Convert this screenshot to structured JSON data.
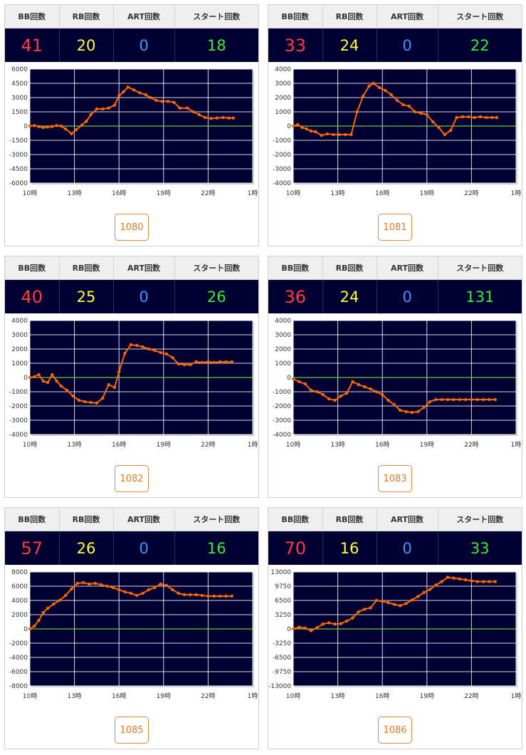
{
  "headers": {
    "bb": "BB回数",
    "rb": "RB回数",
    "art": "ART回数",
    "start": "スタート回数"
  },
  "machines": [
    {
      "number": "1080",
      "stats": {
        "bb": "41",
        "rb": "20",
        "art": "0",
        "start": "18"
      },
      "chart_data": {
        "type": "line",
        "x_ticks": [
          "10時",
          "13時",
          "16時",
          "19時",
          "22時",
          "1時"
        ],
        "y_ticks": [
          "6000",
          "4500",
          "3000",
          "1500",
          "0",
          "-1500",
          "-3000",
          "-4500",
          "-6000"
        ],
        "ylim": [
          -6000,
          6000
        ],
        "xlim": [
          10,
          25
        ],
        "series": [
          {
            "x": [
              10,
              10.3,
              10.6,
              10.9,
              11.2,
              11.5,
              11.8,
              12.1,
              12.4,
              12.8,
              13.1,
              13.5,
              13.8,
              14.1,
              14.5,
              14.9,
              15.3,
              15.7,
              16.0,
              16.3,
              16.6,
              17.0,
              17.4,
              17.8,
              18.1,
              18.5,
              18.9,
              19.3,
              19.7,
              20.1,
              20.6,
              21.0,
              21.4,
              21.8,
              22.2,
              22.6,
              23.0,
              23.4,
              23.7
            ],
            "y": [
              0,
              50,
              -50,
              -150,
              -100,
              -50,
              50,
              0,
              -300,
              -800,
              -400,
              100,
              500,
              1200,
              1800,
              1800,
              1900,
              2200,
              3200,
              3600,
              4100,
              3800,
              3500,
              3300,
              3000,
              2700,
              2600,
              2600,
              2500,
              1900,
              1900,
              1500,
              1200,
              900,
              800,
              850,
              900,
              850,
              850
            ]
          }
        ]
      }
    },
    {
      "number": "1081",
      "stats": {
        "bb": "33",
        "rb": "24",
        "art": "0",
        "start": "22"
      },
      "chart_data": {
        "type": "line",
        "x_ticks": [
          "10時",
          "13時",
          "16時",
          "19時",
          "22時",
          "1時"
        ],
        "y_ticks": [
          "4000",
          "3000",
          "2000",
          "1000",
          "0",
          "-1000",
          "-2000",
          "-3000",
          "-4000"
        ],
        "ylim": [
          -4000,
          4000
        ],
        "xlim": [
          10,
          25
        ],
        "series": [
          {
            "x": [
              10,
              10.3,
              10.6,
              10.9,
              11.2,
              11.5,
              11.9,
              12.3,
              12.7,
              13.1,
              13.5,
              13.9,
              14.3,
              14.7,
              15.1,
              15.4,
              15.8,
              16.2,
              16.6,
              17.0,
              17.4,
              17.8,
              18.2,
              18.6,
              19.0,
              19.4,
              19.8,
              20.2,
              20.6,
              21.0,
              21.4,
              21.8,
              22.2,
              22.6,
              23.0,
              23.4,
              23.7
            ],
            "y": [
              0,
              100,
              -100,
              -200,
              -350,
              -400,
              -650,
              -550,
              -600,
              -600,
              -600,
              -600,
              1000,
              2100,
              2800,
              3000,
              2700,
              2500,
              2200,
              1800,
              1500,
              1400,
              1000,
              900,
              800,
              300,
              -100,
              -600,
              -300,
              600,
              650,
              650,
              600,
              650,
              600,
              600,
              600
            ]
          }
        ]
      }
    },
    {
      "number": "1082",
      "stats": {
        "bb": "40",
        "rb": "25",
        "art": "0",
        "start": "26"
      },
      "chart_data": {
        "type": "line",
        "x_ticks": [
          "10時",
          "13時",
          "16時",
          "19時",
          "22時",
          "1時"
        ],
        "y_ticks": [
          "4000",
          "3000",
          "2000",
          "1000",
          "0",
          "-1000",
          "-2000",
          "-3000",
          "-4000"
        ],
        "ylim": [
          -4000,
          4000
        ],
        "xlim": [
          10,
          25
        ],
        "series": [
          {
            "x": [
              10,
              10.3,
              10.6,
              10.9,
              11.2,
              11.5,
              11.8,
              12.1,
              12.5,
              12.9,
              13.3,
              13.7,
              14.1,
              14.5,
              14.9,
              15.3,
              15.7,
              16.0,
              16.4,
              16.8,
              17.2,
              17.6,
              18.0,
              18.4,
              18.8,
              19.2,
              19.6,
              20.0,
              20.4,
              20.8,
              21.2,
              21.6,
              22.0,
              22.4,
              22.8,
              23.2,
              23.6
            ],
            "y": [
              0,
              50,
              200,
              -250,
              -350,
              200,
              -250,
              -600,
              -900,
              -1300,
              -1600,
              -1700,
              -1750,
              -1800,
              -1450,
              -500,
              -700,
              400,
              1700,
              2300,
              2250,
              2150,
              2000,
              1900,
              1750,
              1650,
              1400,
              950,
              900,
              900,
              1100,
              1050,
              1100,
              1050,
              1100,
              1100,
              1100
            ]
          }
        ]
      }
    },
    {
      "number": "1083",
      "stats": {
        "bb": "36",
        "rb": "24",
        "art": "0",
        "start": "131"
      },
      "chart_data": {
        "type": "line",
        "x_ticks": [
          "10時",
          "13時",
          "16時",
          "19時",
          "22時",
          "1時"
        ],
        "y_ticks": [
          "4000",
          "3000",
          "2000",
          "1000",
          "0",
          "-1000",
          "-2000",
          "-3000",
          "-4000"
        ],
        "ylim": [
          -4000,
          4000
        ],
        "xlim": [
          10,
          25
        ],
        "series": [
          {
            "x": [
              10,
              10.4,
              10.8,
              11.2,
              11.6,
              12.0,
              12.4,
              12.8,
              13.2,
              13.6,
              14.0,
              14.4,
              14.8,
              15.2,
              15.6,
              16.0,
              16.4,
              16.8,
              17.2,
              17.6,
              18.0,
              18.4,
              18.8,
              19.2,
              19.6,
              20.0,
              20.4,
              20.8,
              21.2,
              21.6,
              22.0,
              22.4,
              22.8,
              23.2,
              23.6
            ],
            "y": [
              -100,
              -300,
              -450,
              -900,
              -1000,
              -1200,
              -1500,
              -1600,
              -1300,
              -1100,
              -300,
              -500,
              -650,
              -800,
              -1000,
              -1200,
              -1600,
              -1900,
              -2300,
              -2400,
              -2450,
              -2400,
              -2100,
              -1700,
              -1550,
              -1550,
              -1550,
              -1550,
              -1550,
              -1550,
              -1550,
              -1550,
              -1550,
              -1550,
              -1550
            ]
          }
        ]
      }
    },
    {
      "number": "1085",
      "stats": {
        "bb": "57",
        "rb": "26",
        "art": "0",
        "start": "16"
      },
      "chart_data": {
        "type": "line",
        "x_ticks": [
          "10時",
          "13時",
          "16時",
          "19時",
          "22時",
          "1時"
        ],
        "y_ticks": [
          "8000",
          "6000",
          "4000",
          "2000",
          "0",
          "-2000",
          "-4000",
          "-6000",
          "-8000"
        ],
        "ylim": [
          -8000,
          8000
        ],
        "xlim": [
          10,
          25
        ],
        "series": [
          {
            "x": [
              10,
              10.3,
              10.6,
              10.9,
              11.2,
              11.6,
              12.0,
              12.4,
              12.8,
              13.2,
              13.6,
              14.0,
              14.4,
              14.8,
              15.2,
              15.6,
              16.0,
              16.4,
              16.8,
              17.2,
              17.6,
              18.0,
              18.4,
              18.8,
              19.2,
              19.6,
              20.0,
              20.4,
              20.8,
              21.2,
              21.6,
              22.0,
              22.4,
              22.8,
              23.2,
              23.6
            ],
            "y": [
              0,
              400,
              1200,
              2300,
              2900,
              3500,
              4000,
              4700,
              5600,
              6400,
              6500,
              6300,
              6400,
              6200,
              6000,
              5800,
              5500,
              5200,
              5000,
              4700,
              5000,
              5500,
              5800,
              6300,
              6100,
              5500,
              5000,
              4800,
              4800,
              4800,
              4700,
              4600,
              4600,
              4600,
              4600,
              4600
            ]
          }
        ]
      }
    },
    {
      "number": "1086",
      "stats": {
        "bb": "70",
        "rb": "16",
        "art": "0",
        "start": "33"
      },
      "chart_data": {
        "type": "line",
        "x_ticks": [
          "10時",
          "13時",
          "16時",
          "19時",
          "22時",
          "1時"
        ],
        "y_ticks": [
          "13000",
          "9750",
          "6500",
          "3250",
          "0",
          "-3250",
          "-6500",
          "-9750",
          "-13000"
        ],
        "ylim": [
          -13000,
          13000
        ],
        "xlim": [
          10,
          25
        ],
        "series": [
          {
            "x": [
              10,
              10.4,
              10.8,
              11.2,
              11.6,
              12.0,
              12.4,
              12.8,
              13.2,
              13.6,
              14.0,
              14.4,
              14.8,
              15.2,
              15.6,
              16.0,
              16.4,
              16.8,
              17.2,
              17.6,
              18.0,
              18.4,
              18.8,
              19.2,
              19.6,
              20.0,
              20.4,
              20.8,
              21.2,
              21.6,
              22.0,
              22.4,
              22.8,
              23.2,
              23.6
            ],
            "y": [
              0,
              400,
              200,
              -400,
              300,
              1100,
              1400,
              1100,
              1200,
              1800,
              2500,
              3900,
              4500,
              4800,
              6500,
              6300,
              6000,
              5600,
              5300,
              5800,
              6600,
              7400,
              8300,
              9000,
              10000,
              10800,
              11800,
              11600,
              11400,
              11200,
              11000,
              10800,
              10800,
              10800,
              10800
            ]
          }
        ]
      }
    }
  ],
  "colors": {
    "line": "#ff6600",
    "zero_line": "#66cc33",
    "plot_bg": "#000033",
    "grid": "#ffffff"
  }
}
